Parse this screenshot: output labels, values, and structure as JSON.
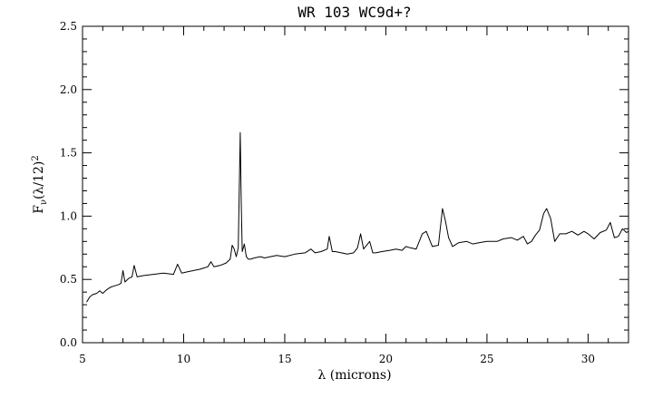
{
  "chart_data": {
    "type": "line",
    "title": "WR 103 WC9d+?",
    "xlabel": "λ (microns)",
    "ylabel_parts": {
      "base": "F",
      "sub": "ν",
      "mid": "(λ/12)",
      "sup": "2"
    },
    "xlim": [
      5,
      32
    ],
    "ylim": [
      0,
      2.5
    ],
    "x_ticks": [
      5,
      10,
      15,
      20,
      25,
      30
    ],
    "x_tick_labels": [
      "5",
      "10",
      "15",
      "20",
      "25",
      "30"
    ],
    "y_ticks": [
      0,
      0.5,
      1.0,
      1.5,
      2.0,
      2.5
    ],
    "y_tick_labels": [
      "0.0",
      "0.5",
      "1.0",
      "1.5",
      "2.0",
      "2.5"
    ],
    "grid": false,
    "legend": "none",
    "line_color": "#000000",
    "series": [
      {
        "x": [
          5.2,
          5.35,
          5.5,
          5.7,
          5.85,
          6.0,
          6.2,
          6.4,
          6.6,
          6.8,
          6.9,
          7.0,
          7.1,
          7.3,
          7.45,
          7.55,
          7.7,
          8.0,
          8.5,
          9.0,
          9.5,
          9.7,
          9.9,
          10.2,
          10.5,
          10.8,
          11.0,
          11.2,
          11.35,
          11.5,
          11.8,
          12.1,
          12.3,
          12.4,
          12.5,
          12.6,
          12.7,
          12.8,
          12.85,
          12.9,
          13.0,
          13.1,
          13.2,
          13.3,
          13.5,
          13.8,
          14.0,
          14.3,
          14.6,
          15.0,
          15.5,
          16.0,
          16.3,
          16.5,
          16.8,
          17.1,
          17.2,
          17.35,
          17.5,
          17.8,
          18.1,
          18.4,
          18.6,
          18.75,
          18.9,
          19.0,
          19.2,
          19.35,
          19.5,
          19.8,
          20.2,
          20.5,
          20.8,
          21.0,
          21.2,
          21.5,
          21.8,
          22.0,
          22.3,
          22.6,
          22.8,
          22.95,
          23.1,
          23.3,
          23.6,
          24.0,
          24.3,
          24.6,
          25.0,
          25.5,
          25.8,
          26.2,
          26.5,
          26.8,
          27.0,
          27.2,
          27.4,
          27.6,
          27.8,
          27.95,
          28.15,
          28.35,
          28.6,
          28.9,
          29.2,
          29.5,
          29.8,
          30.0,
          30.3,
          30.6,
          30.9,
          31.1,
          31.3,
          31.5,
          31.7,
          31.9,
          32.0
        ],
        "y": [
          0.32,
          0.36,
          0.38,
          0.39,
          0.41,
          0.39,
          0.42,
          0.44,
          0.45,
          0.46,
          0.47,
          0.57,
          0.48,
          0.51,
          0.52,
          0.61,
          0.52,
          0.53,
          0.54,
          0.55,
          0.54,
          0.62,
          0.55,
          0.56,
          0.57,
          0.58,
          0.59,
          0.6,
          0.64,
          0.6,
          0.61,
          0.63,
          0.66,
          0.77,
          0.74,
          0.68,
          0.75,
          1.66,
          1.1,
          0.72,
          0.78,
          0.68,
          0.66,
          0.66,
          0.67,
          0.68,
          0.67,
          0.68,
          0.69,
          0.68,
          0.7,
          0.71,
          0.74,
          0.71,
          0.72,
          0.74,
          0.84,
          0.72,
          0.72,
          0.71,
          0.7,
          0.71,
          0.75,
          0.86,
          0.74,
          0.76,
          0.8,
          0.71,
          0.71,
          0.72,
          0.73,
          0.74,
          0.73,
          0.76,
          0.75,
          0.74,
          0.86,
          0.88,
          0.76,
          0.77,
          1.06,
          0.96,
          0.83,
          0.76,
          0.79,
          0.8,
          0.78,
          0.79,
          0.8,
          0.8,
          0.82,
          0.83,
          0.81,
          0.84,
          0.78,
          0.8,
          0.85,
          0.89,
          1.02,
          1.06,
          0.98,
          0.8,
          0.86,
          0.86,
          0.88,
          0.85,
          0.88,
          0.86,
          0.82,
          0.87,
          0.89,
          0.95,
          0.83,
          0.84,
          0.9,
          0.87,
          0.88
        ]
      }
    ]
  }
}
